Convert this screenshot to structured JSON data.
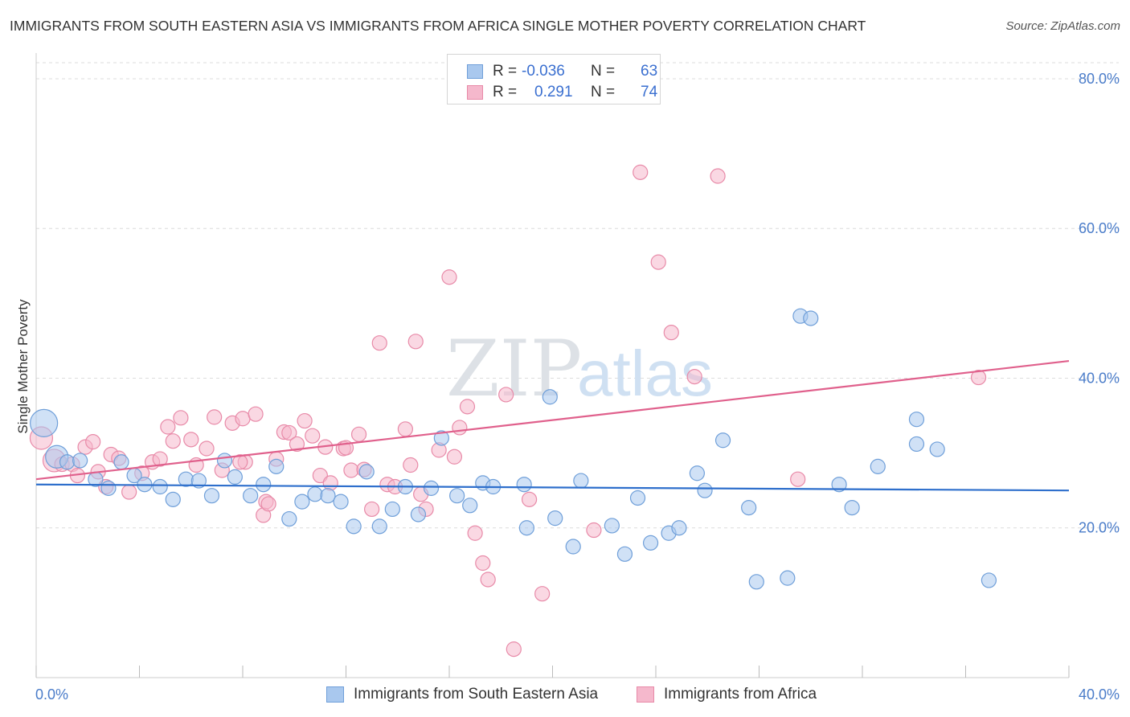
{
  "title": "IMMIGRANTS FROM SOUTH EASTERN ASIA VS IMMIGRANTS FROM AFRICA SINGLE MOTHER POVERTY CORRELATION CHART",
  "source": "Source: ZipAtlas.com",
  "legend": {
    "series1": {
      "r_label": "R =",
      "r_value": "-0.036",
      "n_label": "N =",
      "n_value": "63"
    },
    "series2": {
      "r_label": "R =",
      "r_value": "0.291",
      "n_label": "N =",
      "n_value": "74"
    }
  },
  "bottom_legend": {
    "series1": "Immigrants from South Eastern Asia",
    "series2": "Immigrants from Africa"
  },
  "watermark": {
    "zip": "ZIP",
    "atlas": "atlas"
  },
  "colors": {
    "blue_fill": "#a9c8ee",
    "blue_stroke": "#6f9fd9",
    "blue_line": "#2e6fcc",
    "pink_fill": "#f5b8cc",
    "pink_stroke": "#e88aa8",
    "pink_line": "#e0608c",
    "tick_text": "#4a7cc9",
    "grid": "#dcdcdc"
  },
  "chart_data": {
    "type": "scatter",
    "title": "IMMIGRANTS FROM SOUTH EASTERN ASIA VS IMMIGRANTS FROM AFRICA SINGLE MOTHER POVERTY CORRELATION CHART",
    "xlabel": "",
    "ylabel": "Single Mother Poverty",
    "xlim": [
      0,
      40
    ],
    "ylim": [
      0,
      83
    ],
    "x_tick_labels": [
      "0.0%",
      "40.0%"
    ],
    "y_ticks": [
      20,
      40,
      60,
      80
    ],
    "y_tick_labels": [
      "20.0%",
      "40.0%",
      "60.0%",
      "80.0%"
    ],
    "series": [
      {
        "name": "Immigrants from South Eastern Asia",
        "color": "#a9c8ee",
        "trend": {
          "x": [
            0,
            40
          ],
          "y": [
            25.8,
            25.0
          ]
        },
        "points": [
          {
            "x": 0.3,
            "y": 34.0,
            "s": 3
          },
          {
            "x": 0.8,
            "y": 29.5,
            "s": 2
          },
          {
            "x": 1.2,
            "y": 28.8,
            "s": 1
          },
          {
            "x": 1.7,
            "y": 29.0,
            "s": 1
          },
          {
            "x": 2.3,
            "y": 26.5,
            "s": 1
          },
          {
            "x": 2.8,
            "y": 25.3,
            "s": 1
          },
          {
            "x": 3.3,
            "y": 28.8,
            "s": 1
          },
          {
            "x": 3.8,
            "y": 27.0,
            "s": 1
          },
          {
            "x": 4.2,
            "y": 25.8,
            "s": 1
          },
          {
            "x": 4.8,
            "y": 25.5,
            "s": 1
          },
          {
            "x": 5.3,
            "y": 23.8,
            "s": 1
          },
          {
            "x": 5.8,
            "y": 26.5,
            "s": 1
          },
          {
            "x": 6.3,
            "y": 26.3,
            "s": 1
          },
          {
            "x": 6.8,
            "y": 24.3,
            "s": 1
          },
          {
            "x": 7.3,
            "y": 29.0,
            "s": 1
          },
          {
            "x": 7.7,
            "y": 26.8,
            "s": 1
          },
          {
            "x": 8.3,
            "y": 24.3,
            "s": 1
          },
          {
            "x": 8.8,
            "y": 25.8,
            "s": 1
          },
          {
            "x": 9.3,
            "y": 28.2,
            "s": 1
          },
          {
            "x": 9.8,
            "y": 21.2,
            "s": 1
          },
          {
            "x": 10.3,
            "y": 23.5,
            "s": 1
          },
          {
            "x": 10.8,
            "y": 24.5,
            "s": 1
          },
          {
            "x": 11.3,
            "y": 24.3,
            "s": 1
          },
          {
            "x": 11.8,
            "y": 23.5,
            "s": 1
          },
          {
            "x": 12.3,
            "y": 20.2,
            "s": 1
          },
          {
            "x": 12.8,
            "y": 27.5,
            "s": 1
          },
          {
            "x": 13.3,
            "y": 20.2,
            "s": 1
          },
          {
            "x": 13.8,
            "y": 22.5,
            "s": 1
          },
          {
            "x": 14.3,
            "y": 25.5,
            "s": 1
          },
          {
            "x": 14.8,
            "y": 21.8,
            "s": 1
          },
          {
            "x": 15.3,
            "y": 25.3,
            "s": 1
          },
          {
            "x": 15.7,
            "y": 32.0,
            "s": 1
          },
          {
            "x": 16.3,
            "y": 24.3,
            "s": 1
          },
          {
            "x": 16.8,
            "y": 23.0,
            "s": 1
          },
          {
            "x": 17.3,
            "y": 26.0,
            "s": 1
          },
          {
            "x": 17.7,
            "y": 25.5,
            "s": 1
          },
          {
            "x": 18.9,
            "y": 25.8,
            "s": 1
          },
          {
            "x": 19.0,
            "y": 20.0,
            "s": 1
          },
          {
            "x": 19.9,
            "y": 37.5,
            "s": 1
          },
          {
            "x": 20.1,
            "y": 21.3,
            "s": 1
          },
          {
            "x": 20.8,
            "y": 17.5,
            "s": 1
          },
          {
            "x": 21.1,
            "y": 26.3,
            "s": 1
          },
          {
            "x": 22.3,
            "y": 20.3,
            "s": 1
          },
          {
            "x": 22.8,
            "y": 16.5,
            "s": 1
          },
          {
            "x": 23.3,
            "y": 24.0,
            "s": 1
          },
          {
            "x": 23.8,
            "y": 18.0,
            "s": 1
          },
          {
            "x": 24.5,
            "y": 19.3,
            "s": 1
          },
          {
            "x": 24.9,
            "y": 20.0,
            "s": 1
          },
          {
            "x": 25.6,
            "y": 27.3,
            "s": 1
          },
          {
            "x": 25.9,
            "y": 25.0,
            "s": 1
          },
          {
            "x": 26.6,
            "y": 31.7,
            "s": 1
          },
          {
            "x": 27.6,
            "y": 22.7,
            "s": 1
          },
          {
            "x": 27.9,
            "y": 12.8,
            "s": 1
          },
          {
            "x": 29.1,
            "y": 13.3,
            "s": 1
          },
          {
            "x": 29.6,
            "y": 48.3,
            "s": 1
          },
          {
            "x": 30.0,
            "y": 48.0,
            "s": 1
          },
          {
            "x": 31.1,
            "y": 25.8,
            "s": 1
          },
          {
            "x": 31.6,
            "y": 22.7,
            "s": 1
          },
          {
            "x": 32.6,
            "y": 28.2,
            "s": 1
          },
          {
            "x": 34.1,
            "y": 34.5,
            "s": 1
          },
          {
            "x": 34.1,
            "y": 31.2,
            "s": 1
          },
          {
            "x": 34.9,
            "y": 30.5,
            "s": 1
          },
          {
            "x": 36.9,
            "y": 13.0,
            "s": 1
          }
        ]
      },
      {
        "name": "Immigrants from Africa",
        "color": "#f5b8cc",
        "trend": {
          "x": [
            0,
            40
          ],
          "y": [
            26.5,
            42.3
          ]
        },
        "points": [
          {
            "x": 0.2,
            "y": 32.0,
            "s": 2
          },
          {
            "x": 0.7,
            "y": 29.0,
            "s": 2
          },
          {
            "x": 1.0,
            "y": 28.5,
            "s": 1
          },
          {
            "x": 1.4,
            "y": 28.5,
            "s": 1
          },
          {
            "x": 1.6,
            "y": 27.0,
            "s": 1
          },
          {
            "x": 1.9,
            "y": 30.8,
            "s": 1
          },
          {
            "x": 2.2,
            "y": 31.5,
            "s": 1
          },
          {
            "x": 2.4,
            "y": 27.5,
            "s": 1
          },
          {
            "x": 2.7,
            "y": 25.5,
            "s": 1
          },
          {
            "x": 2.9,
            "y": 29.8,
            "s": 1
          },
          {
            "x": 3.2,
            "y": 29.3,
            "s": 1
          },
          {
            "x": 3.6,
            "y": 24.8,
            "s": 1
          },
          {
            "x": 4.1,
            "y": 27.3,
            "s": 1
          },
          {
            "x": 4.5,
            "y": 28.8,
            "s": 1
          },
          {
            "x": 4.8,
            "y": 29.2,
            "s": 1
          },
          {
            "x": 5.1,
            "y": 33.5,
            "s": 1
          },
          {
            "x": 5.3,
            "y": 31.6,
            "s": 1
          },
          {
            "x": 5.6,
            "y": 34.7,
            "s": 1
          },
          {
            "x": 6.0,
            "y": 31.8,
            "s": 1
          },
          {
            "x": 6.2,
            "y": 28.4,
            "s": 1
          },
          {
            "x": 6.6,
            "y": 30.6,
            "s": 1
          },
          {
            "x": 6.9,
            "y": 34.8,
            "s": 1
          },
          {
            "x": 7.2,
            "y": 27.7,
            "s": 1
          },
          {
            "x": 7.6,
            "y": 34.0,
            "s": 1
          },
          {
            "x": 8.0,
            "y": 34.6,
            "s": 1
          },
          {
            "x": 8.1,
            "y": 28.8,
            "s": 1
          },
          {
            "x": 8.5,
            "y": 35.2,
            "s": 1
          },
          {
            "x": 8.8,
            "y": 21.7,
            "s": 1
          },
          {
            "x": 8.9,
            "y": 23.5,
            "s": 1
          },
          {
            "x": 9.3,
            "y": 29.2,
            "s": 1
          },
          {
            "x": 9.6,
            "y": 32.8,
            "s": 1
          },
          {
            "x": 9.8,
            "y": 32.7,
            "s": 1
          },
          {
            "x": 10.1,
            "y": 31.2,
            "s": 1
          },
          {
            "x": 10.4,
            "y": 34.3,
            "s": 1
          },
          {
            "x": 10.7,
            "y": 32.3,
            "s": 1
          },
          {
            "x": 11.0,
            "y": 27.0,
            "s": 1
          },
          {
            "x": 11.2,
            "y": 30.8,
            "s": 1
          },
          {
            "x": 11.4,
            "y": 26.0,
            "s": 1
          },
          {
            "x": 11.9,
            "y": 30.6,
            "s": 1
          },
          {
            "x": 12.2,
            "y": 27.7,
            "s": 1
          },
          {
            "x": 12.5,
            "y": 32.5,
            "s": 1
          },
          {
            "x": 12.7,
            "y": 27.8,
            "s": 1
          },
          {
            "x": 13.0,
            "y": 22.5,
            "s": 1
          },
          {
            "x": 13.3,
            "y": 44.7,
            "s": 1
          },
          {
            "x": 13.6,
            "y": 25.8,
            "s": 1
          },
          {
            "x": 13.9,
            "y": 25.5,
            "s": 1
          },
          {
            "x": 14.3,
            "y": 33.2,
            "s": 1
          },
          {
            "x": 14.5,
            "y": 28.4,
            "s": 1
          },
          {
            "x": 14.7,
            "y": 44.9,
            "s": 1
          },
          {
            "x": 14.9,
            "y": 24.5,
            "s": 1
          },
          {
            "x": 15.1,
            "y": 22.5,
            "s": 1
          },
          {
            "x": 15.6,
            "y": 30.4,
            "s": 1
          },
          {
            "x": 16.0,
            "y": 53.5,
            "s": 1
          },
          {
            "x": 16.2,
            "y": 29.5,
            "s": 1
          },
          {
            "x": 16.4,
            "y": 33.4,
            "s": 1
          },
          {
            "x": 16.7,
            "y": 36.2,
            "s": 1
          },
          {
            "x": 17.0,
            "y": 19.3,
            "s": 1
          },
          {
            "x": 17.3,
            "y": 15.3,
            "s": 1
          },
          {
            "x": 17.5,
            "y": 13.1,
            "s": 1
          },
          {
            "x": 18.2,
            "y": 37.8,
            "s": 1
          },
          {
            "x": 18.5,
            "y": 3.8,
            "s": 1
          },
          {
            "x": 19.1,
            "y": 23.8,
            "s": 1
          },
          {
            "x": 19.6,
            "y": 11.2,
            "s": 1
          },
          {
            "x": 21.6,
            "y": 19.7,
            "s": 1
          },
          {
            "x": 23.4,
            "y": 67.5,
            "s": 1
          },
          {
            "x": 24.1,
            "y": 55.5,
            "s": 1
          },
          {
            "x": 24.6,
            "y": 46.1,
            "s": 1
          },
          {
            "x": 25.5,
            "y": 40.2,
            "s": 1
          },
          {
            "x": 26.4,
            "y": 67.0,
            "s": 1
          },
          {
            "x": 29.5,
            "y": 26.5,
            "s": 1
          },
          {
            "x": 36.5,
            "y": 40.1,
            "s": 1
          },
          {
            "x": 12.0,
            "y": 30.7,
            "s": 1
          },
          {
            "x": 9.0,
            "y": 23.2,
            "s": 1
          },
          {
            "x": 7.9,
            "y": 28.8,
            "s": 1
          }
        ]
      }
    ]
  }
}
